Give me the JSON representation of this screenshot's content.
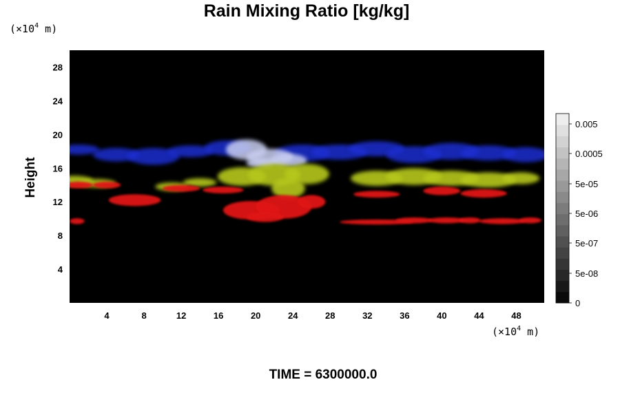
{
  "chart_data": {
    "type": "heatmap",
    "title": "Rain Mixing Ratio [kg/kg]",
    "xlabel": "",
    "ylabel": "Height",
    "x_unit": {
      "prefix": "(×10",
      "exp": "4",
      "suffix": " m)"
    },
    "y_unit": {
      "prefix": "(×10",
      "exp": "4",
      "suffix": " m)"
    },
    "x_ticks": [
      4,
      8,
      12,
      16,
      20,
      24,
      28,
      32,
      36,
      40,
      44,
      48
    ],
    "y_ticks": [
      4,
      8,
      12,
      16,
      20,
      24,
      28
    ],
    "xlim": [
      0,
      51
    ],
    "ylim": [
      0,
      30
    ],
    "grid": false,
    "colorbar": {
      "position": "right",
      "tick_labels": [
        "0.005",
        "0.0005",
        "5e-05",
        "5e-06",
        "5e-07",
        "5e-08",
        "0"
      ],
      "levels": 17,
      "colormap": "grayscale"
    },
    "cloud_layers": [
      {
        "name": "blue",
        "color": "#1a2fd0",
        "x_range": [
          0,
          51
        ],
        "y_range": [
          16.5,
          19.5
        ]
      },
      {
        "name": "white",
        "color": "#c8cdf0",
        "x_range": [
          17,
          26
        ],
        "y_range": [
          16.0,
          19.5
        ]
      },
      {
        "name": "yellow",
        "color": "#b6c81a",
        "x_range": [
          0,
          51
        ],
        "y_range": [
          12.5,
          16.5
        ]
      },
      {
        "name": "red",
        "color": "#e01212",
        "x_range": [
          0,
          51
        ],
        "y_range": [
          9.5,
          14.0
        ]
      }
    ],
    "footer": "TIME = 6300000.0"
  }
}
